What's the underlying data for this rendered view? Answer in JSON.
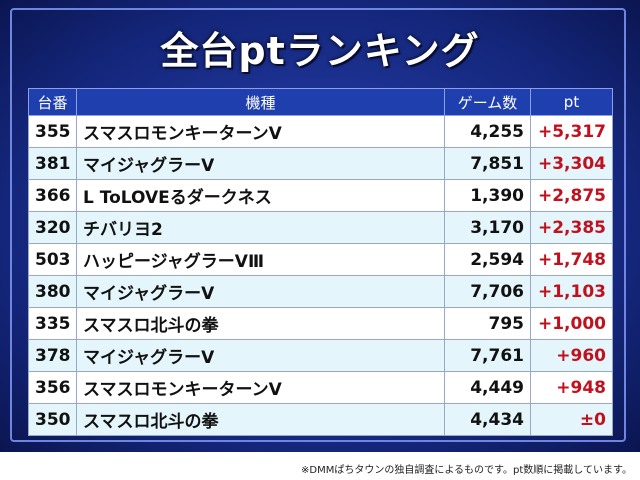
{
  "header": {
    "title": "全台ptランキング"
  },
  "table": {
    "columns": [
      "台番",
      "機種",
      "ゲーム数",
      "pt"
    ],
    "rows": [
      [
        "355",
        "スマスロモンキーターンV",
        "4,255",
        "+5,317"
      ],
      [
        "381",
        "マイジャグラーV",
        "7,851",
        "+3,304"
      ],
      [
        "366",
        "L ToLOVEるダークネス",
        "1,390",
        "+2,875"
      ],
      [
        "320",
        "チバリヨ2",
        "3,170",
        "+2,385"
      ],
      [
        "503",
        "ハッピージャグラーVⅢ",
        "2,594",
        "+1,748"
      ],
      [
        "380",
        "マイジャグラーV",
        "7,706",
        "+1,103"
      ],
      [
        "335",
        "スマスロ北斗の拳",
        "795",
        "+1,000"
      ],
      [
        "378",
        "マイジャグラーV",
        "7,761",
        "+960"
      ],
      [
        "356",
        "スマスロモンキーターンV",
        "4,449",
        "+948"
      ],
      [
        "350",
        "スマスロ北斗の拳",
        "4,434",
        "±0"
      ]
    ]
  },
  "footnote": "※DMMぱちタウンの独自調査によるものです。pt数順に掲載しています。"
}
